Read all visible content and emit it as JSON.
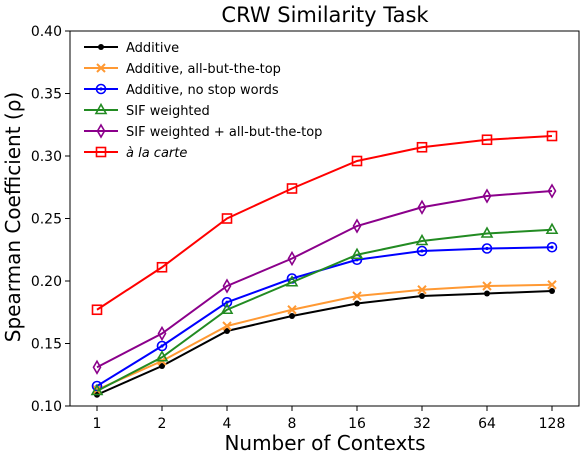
{
  "chart_data": {
    "type": "line",
    "title": "CRW Similarity Task",
    "xlabel": "Number of Contexts",
    "ylabel": "Spearman Coefficient (ρ)",
    "categories": [
      "1",
      "2",
      "4",
      "8",
      "16",
      "32",
      "64",
      "128"
    ],
    "ylim": [
      0.1,
      0.4
    ],
    "yticks": [
      "0.10",
      "0.15",
      "0.20",
      "0.25",
      "0.30",
      "0.35",
      "0.40"
    ],
    "ytick_values": [
      0.1,
      0.15,
      0.2,
      0.25,
      0.3,
      0.35,
      0.4
    ],
    "grid": false,
    "legend_position": "top-left",
    "series": [
      {
        "name": "Additive",
        "color": "#000000",
        "marker": "dot",
        "values": [
          0.109,
          0.132,
          0.16,
          0.172,
          0.182,
          0.188,
          0.19,
          0.192
        ]
      },
      {
        "name": "Additive, all-but-the-top",
        "color": "#ff9933",
        "marker": "x",
        "values": [
          0.113,
          0.136,
          0.164,
          0.177,
          0.188,
          0.193,
          0.196,
          0.197
        ]
      },
      {
        "name": "Additive, no stop words",
        "color": "#0000ff",
        "marker": "circle-dot",
        "values": [
          0.116,
          0.148,
          0.183,
          0.202,
          0.217,
          0.224,
          0.226,
          0.227
        ]
      },
      {
        "name": "SIF weighted",
        "color": "#228b22",
        "marker": "triangle",
        "values": [
          0.112,
          0.139,
          0.177,
          0.199,
          0.221,
          0.232,
          0.238,
          0.241
        ]
      },
      {
        "name": "SIF weighted + all-but-the-top",
        "color": "#8b008b",
        "marker": "diamond",
        "values": [
          0.131,
          0.158,
          0.196,
          0.218,
          0.244,
          0.259,
          0.268,
          0.272
        ]
      },
      {
        "name": "à la carte",
        "color": "#ff0000",
        "marker": "square",
        "italic": true,
        "values": [
          0.177,
          0.211,
          0.25,
          0.274,
          0.296,
          0.307,
          0.313,
          0.316
        ]
      }
    ]
  }
}
